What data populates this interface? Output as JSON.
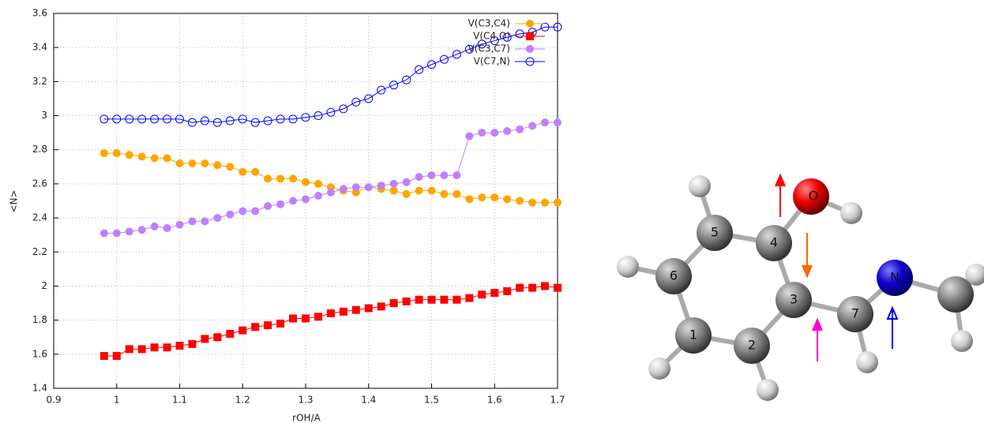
{
  "chart_data": {
    "type": "line",
    "xlabel": "rOH/A",
    "ylabel": "<N>",
    "xlim": [
      0.9,
      1.7
    ],
    "xticks": [
      0.9,
      1,
      1.1,
      1.2,
      1.3,
      1.4,
      1.5,
      1.6,
      1.7
    ],
    "ylim": [
      1.4,
      3.6
    ],
    "yticks": [
      1.4,
      1.6,
      1.8,
      2,
      2.2,
      2.4,
      2.6,
      2.8,
      3,
      3.2,
      3.4,
      3.6
    ],
    "grid": true,
    "legend": "top-right",
    "x": [
      0.98,
      1.0,
      1.02,
      1.04,
      1.06,
      1.08,
      1.1,
      1.12,
      1.14,
      1.16,
      1.18,
      1.2,
      1.22,
      1.24,
      1.26,
      1.28,
      1.3,
      1.32,
      1.34,
      1.36,
      1.38,
      1.4,
      1.42,
      1.44,
      1.46,
      1.48,
      1.5,
      1.52,
      1.54,
      1.56,
      1.58,
      1.6,
      1.62,
      1.64,
      1.66,
      1.68,
      1.7
    ],
    "series": [
      {
        "name": "V(C3,C4)",
        "color": "#ffa500",
        "marker": "circle",
        "values": [
          2.78,
          2.78,
          2.77,
          2.76,
          2.75,
          2.75,
          2.72,
          2.72,
          2.72,
          2.71,
          2.7,
          2.67,
          2.67,
          2.63,
          2.63,
          2.63,
          2.61,
          2.6,
          2.58,
          2.56,
          2.55,
          2.58,
          2.57,
          2.56,
          2.54,
          2.56,
          2.56,
          2.54,
          2.54,
          2.51,
          2.52,
          2.52,
          2.51,
          2.5,
          2.49,
          2.49,
          2.49
        ]
      },
      {
        "name": "V(C4,O)",
        "color": "#ff0000",
        "marker": "square",
        "values": [
          1.59,
          1.59,
          1.63,
          1.63,
          1.64,
          1.64,
          1.65,
          1.66,
          1.69,
          1.7,
          1.72,
          1.74,
          1.76,
          1.77,
          1.78,
          1.81,
          1.81,
          1.82,
          1.84,
          1.85,
          1.86,
          1.87,
          1.88,
          1.9,
          1.91,
          1.92,
          1.92,
          1.92,
          1.92,
          1.93,
          1.95,
          1.96,
          1.97,
          1.99,
          1.99,
          2.0,
          1.99
        ]
      },
      {
        "name": "V(C3,C7)",
        "color": "#bf80ff",
        "marker": "circle",
        "values": [
          2.31,
          2.31,
          2.32,
          2.33,
          2.35,
          2.34,
          2.36,
          2.38,
          2.38,
          2.4,
          2.42,
          2.44,
          2.44,
          2.47,
          2.48,
          2.5,
          2.51,
          2.53,
          2.55,
          2.57,
          2.58,
          2.58,
          2.59,
          2.6,
          2.61,
          2.64,
          2.65,
          2.65,
          2.65,
          2.88,
          2.9,
          2.9,
          2.91,
          2.92,
          2.94,
          2.96,
          2.96
        ]
      },
      {
        "name": "V(C7,N)",
        "color": "#0000ff",
        "marker": "open-circle",
        "values": [
          2.98,
          2.98,
          2.98,
          2.98,
          2.98,
          2.98,
          2.98,
          2.96,
          2.97,
          2.96,
          2.97,
          2.98,
          2.96,
          2.97,
          2.98,
          2.98,
          2.99,
          3.0,
          3.02,
          3.04,
          3.08,
          3.1,
          3.15,
          3.18,
          3.21,
          3.27,
          3.3,
          3.33,
          3.36,
          3.39,
          3.42,
          3.44,
          3.46,
          3.48,
          3.49,
          3.52,
          3.52
        ]
      }
    ]
  },
  "molecule": {
    "atoms": [
      "O",
      "4",
      "5",
      "6",
      "1",
      "2",
      "3",
      "7",
      "N"
    ]
  }
}
